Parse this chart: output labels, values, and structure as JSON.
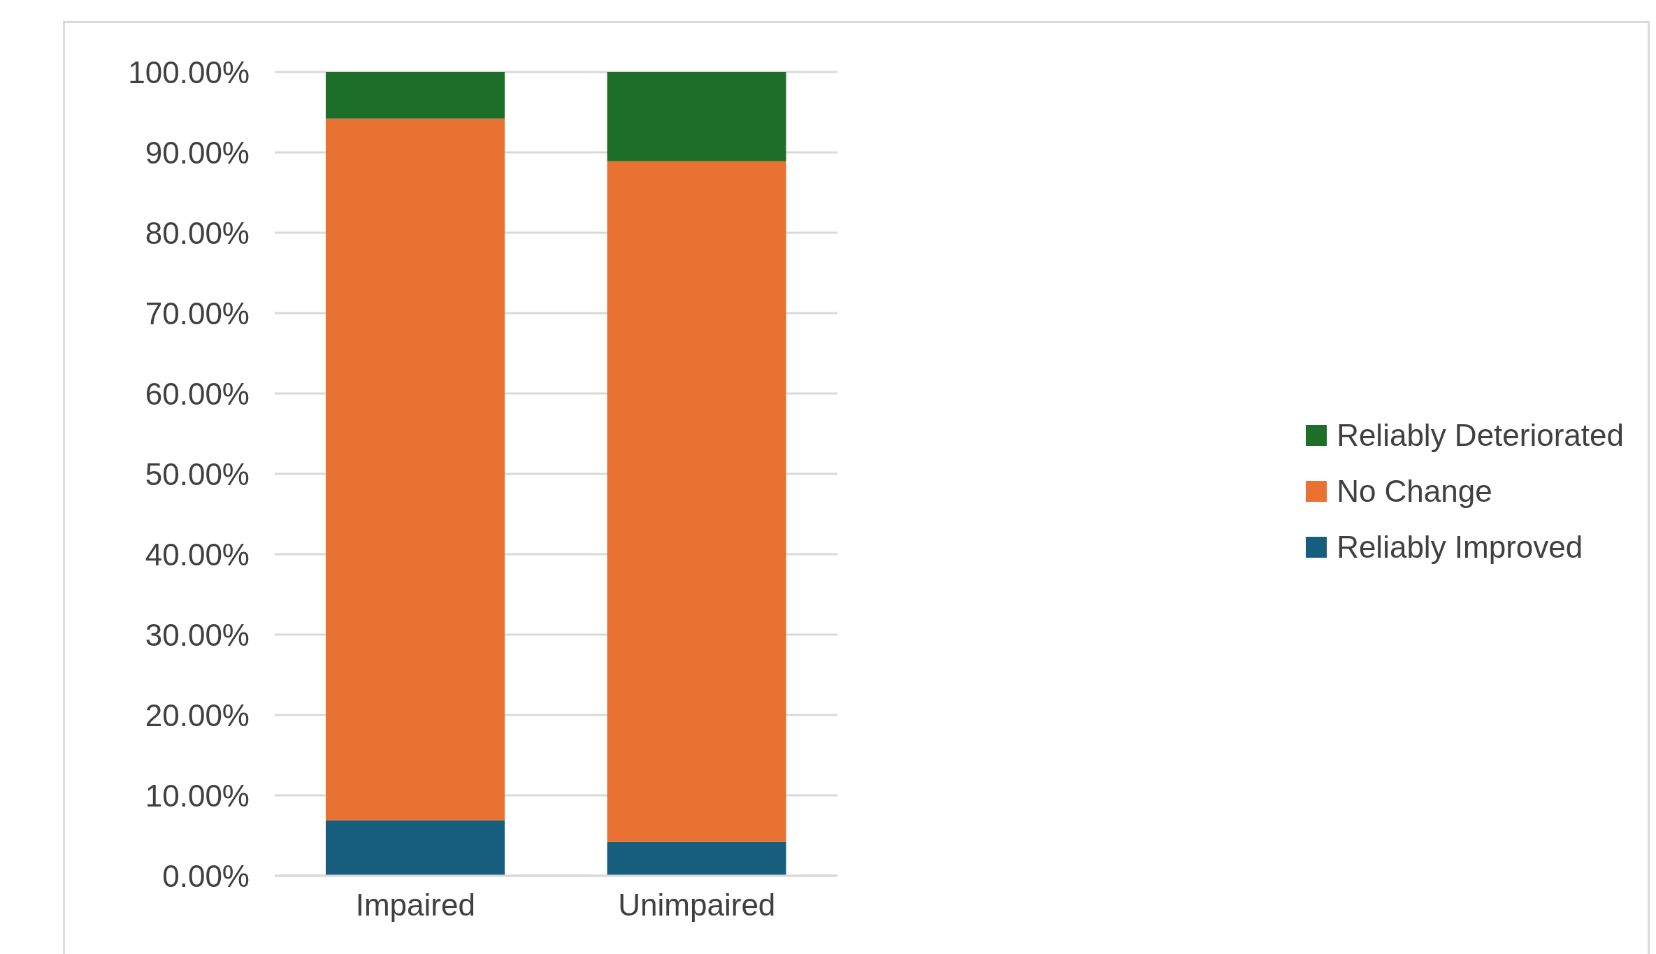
{
  "chart_data": {
    "type": "bar",
    "stacked": true,
    "categories": [
      "Impaired",
      "Unimpaired"
    ],
    "series": [
      {
        "name": "Reliably Improved",
        "color": "#175e7e",
        "values": [
          6.9,
          4.2
        ]
      },
      {
        "name": "No Change",
        "color": "#e97132",
        "values": [
          87.3,
          84.7
        ]
      },
      {
        "name": "Reliably Deteriorated",
        "color": "#1d6e28",
        "values": [
          5.8,
          11.1
        ]
      }
    ],
    "ylim": [
      0,
      100
    ],
    "yticks": [
      {
        "value": 0,
        "label": "0.00%"
      },
      {
        "value": 10,
        "label": "10.00%"
      },
      {
        "value": 20,
        "label": "20.00%"
      },
      {
        "value": 30,
        "label": "30.00%"
      },
      {
        "value": 40,
        "label": "40.00%"
      },
      {
        "value": 50,
        "label": "50.00%"
      },
      {
        "value": 60,
        "label": "60.00%"
      },
      {
        "value": 70,
        "label": "70.00%"
      },
      {
        "value": 80,
        "label": "80.00%"
      },
      {
        "value": 90,
        "label": "90.00%"
      },
      {
        "value": 100,
        "label": "100.00%"
      }
    ],
    "grid": "y",
    "legend": "right"
  }
}
